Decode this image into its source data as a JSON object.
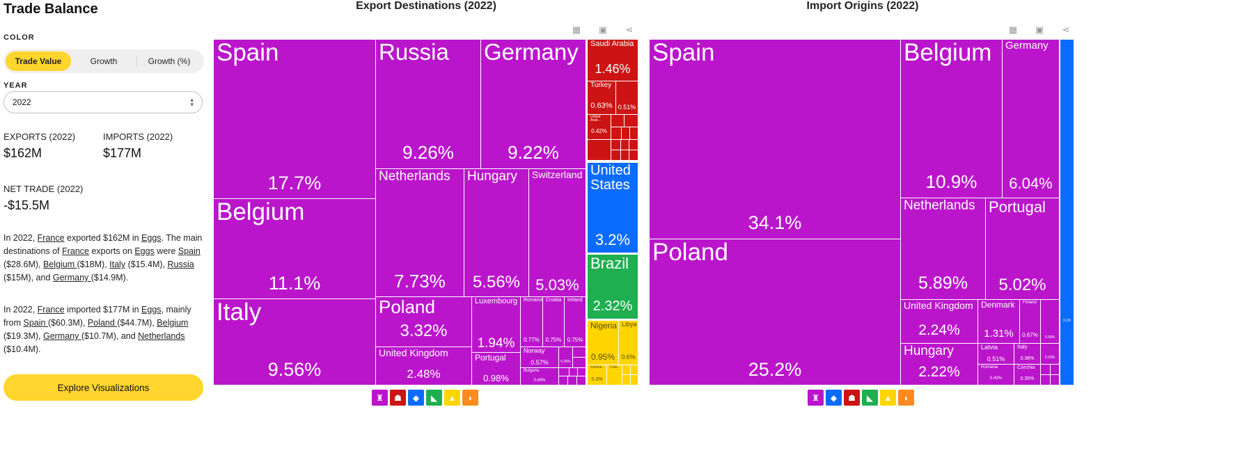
{
  "page": {
    "title": "Trade Balance",
    "color_label": "COLOR",
    "color_options": [
      "Trade Value",
      "Growth",
      "Growth (%)"
    ],
    "color_selected": "Trade Value",
    "year_label": "YEAR",
    "year_value": "2022",
    "exports_label": "EXPORTS (2022)",
    "exports_value": "$162M",
    "imports_label": "IMPORTS (2022)",
    "imports_value": "$177M",
    "net_label": "NET TRADE (2022)",
    "net_value": "-$15.5M",
    "para1": [
      {
        "t": "In 2022, "
      },
      {
        "t": "France",
        "u": true
      },
      {
        "t": " exported $162M in "
      },
      {
        "t": "Eggs",
        "u": true
      },
      {
        "t": ". The main destinations of "
      },
      {
        "t": "France",
        "u": true
      },
      {
        "t": " exports on "
      },
      {
        "t": "Eggs",
        "u": true
      },
      {
        "t": " were "
      },
      {
        "t": "Spain ",
        "u": true
      },
      {
        "t": "($28.6M), "
      },
      {
        "t": "Belgium ",
        "u": true
      },
      {
        "t": "($18M), "
      },
      {
        "t": "Italy",
        "u": true
      },
      {
        "t": " ($15.4M), "
      },
      {
        "t": "Russia ",
        "u": true
      },
      {
        "t": "($15M), and "
      },
      {
        "t": "Germany ",
        "u": true
      },
      {
        "t": "($14.9M)."
      }
    ],
    "para2": [
      {
        "t": "In 2022, "
      },
      {
        "t": "France",
        "u": true
      },
      {
        "t": " imported $177M in "
      },
      {
        "t": "Eggs",
        "u": true
      },
      {
        "t": ", mainly from "
      },
      {
        "t": "Spain ",
        "u": true
      },
      {
        "t": "($60.3M), "
      },
      {
        "t": "Poland ",
        "u": true
      },
      {
        "t": "($44.7M), "
      },
      {
        "t": "Belgium",
        "u": true
      },
      {
        "t": " ($19.3M), "
      },
      {
        "t": "Germany ",
        "u": true
      },
      {
        "t": "($10.7M), and "
      },
      {
        "t": "Netherlands",
        "u": true
      },
      {
        "t": " ($10.4M)."
      }
    ],
    "explore_label": "Explore Visualizations",
    "tool_icons": [
      "table-icon",
      "image-icon",
      "share-icon"
    ]
  },
  "colors": {
    "europe": "#bb15cc",
    "asia": "#cc1414",
    "north_america": "#0a6cff",
    "south_america": "#1faf50",
    "africa": "#ffd500",
    "oceania": "#ff8a1f",
    "accent": "#ffd52e"
  },
  "chart_data": [
    {
      "type": "treemap",
      "title": "Export Destinations (2022)",
      "unit": "% of exports",
      "labeled_items": [
        {
          "name": "Spain",
          "value": 17.7,
          "region": "europe"
        },
        {
          "name": "Belgium",
          "value": 11.1,
          "region": "europe"
        },
        {
          "name": "Italy",
          "value": 9.56,
          "region": "europe"
        },
        {
          "name": "Russia",
          "value": 9.26,
          "region": "europe"
        },
        {
          "name": "Germany",
          "value": 9.22,
          "region": "europe"
        },
        {
          "name": "Netherlands",
          "value": 7.73,
          "region": "europe"
        },
        {
          "name": "Hungary",
          "value": 5.56,
          "region": "europe"
        },
        {
          "name": "Switzerland",
          "value": 5.03,
          "region": "europe"
        },
        {
          "name": "Poland",
          "value": 3.32,
          "region": "europe"
        },
        {
          "name": "United Kingdom",
          "value": 2.48,
          "region": "europe"
        },
        {
          "name": "Luxembourg",
          "value": 1.94,
          "region": "europe"
        },
        {
          "name": "Portugal",
          "value": 0.98,
          "region": "europe"
        },
        {
          "name": "Romania",
          "value": 0.77,
          "region": "europe"
        },
        {
          "name": "Croatia",
          "value": 0.75,
          "region": "europe"
        },
        {
          "name": "Ireland",
          "value": 0.75,
          "region": "europe"
        },
        {
          "name": "Norway",
          "value": 0.57,
          "region": "europe"
        },
        {
          "name": "Bulgaria",
          "value": 0.49,
          "region": "europe"
        },
        {
          "name": "",
          "value": 0.26,
          "region": "europe"
        },
        {
          "name": "Saudi Arabia",
          "value": 1.46,
          "region": "asia"
        },
        {
          "name": "Turkey",
          "value": 0.63,
          "region": "asia"
        },
        {
          "name": "",
          "value": 0.51,
          "region": "asia"
        },
        {
          "name": "United Arab...",
          "value": 0.42,
          "region": "asia"
        },
        {
          "name": "United States",
          "value": 3.2,
          "region": "north_america"
        },
        {
          "name": "Brazil",
          "value": 2.32,
          "region": "south_america"
        },
        {
          "name": "Nigeria",
          "value": 0.95,
          "region": "africa"
        },
        {
          "name": "Libya",
          "value": 0.6,
          "region": "africa"
        },
        {
          "name": "Central...",
          "value": 0.3,
          "region": "africa"
        },
        {
          "name": "Cote...",
          "value": null,
          "region": "africa"
        }
      ],
      "region_icons": [
        "europe",
        "asia",
        "north_america",
        "south_america",
        "africa",
        "oceania"
      ]
    },
    {
      "type": "treemap",
      "title": "Import Origins (2022)",
      "unit": "% of imports",
      "labeled_items": [
        {
          "name": "Spain",
          "value": 34.1,
          "region": "europe"
        },
        {
          "name": "Poland",
          "value": 25.2,
          "region": "europe"
        },
        {
          "name": "Belgium",
          "value": 10.9,
          "region": "europe"
        },
        {
          "name": "Germany",
          "value": 6.04,
          "region": "europe"
        },
        {
          "name": "Netherlands",
          "value": 5.89,
          "region": "europe"
        },
        {
          "name": "Portugal",
          "value": 5.02,
          "region": "europe"
        },
        {
          "name": "United Kingdom",
          "value": 2.24,
          "region": "europe"
        },
        {
          "name": "Hungary",
          "value": 2.22,
          "region": "europe"
        },
        {
          "name": "Denmark",
          "value": 1.31,
          "region": "europe"
        },
        {
          "name": "Finland",
          "value": 0.67,
          "region": "europe"
        },
        {
          "name": "",
          "value": 0.55,
          "region": "europe"
        },
        {
          "name": "Latvia",
          "value": 0.51,
          "region": "europe"
        },
        {
          "name": "Italy",
          "value": 0.38,
          "region": "europe"
        },
        {
          "name": "",
          "value": 0.23,
          "region": "europe"
        },
        {
          "name": "Romania",
          "value": 0.43,
          "region": "europe"
        },
        {
          "name": "Czechia",
          "value": 0.35,
          "region": "europe"
        },
        {
          "name": "",
          "value": 3.1,
          "region": "north_america"
        }
      ],
      "region_icons": [
        "europe",
        "north_america",
        "asia",
        "south_america",
        "africa",
        "oceania"
      ]
    }
  ]
}
